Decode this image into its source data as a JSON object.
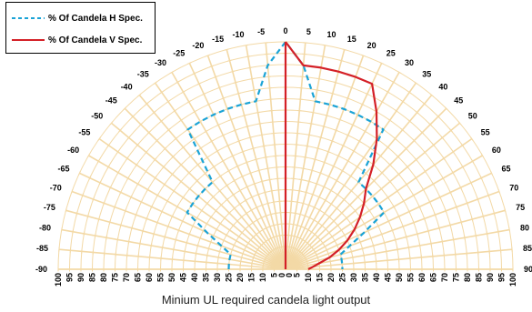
{
  "chart_data": {
    "type": "polar-semicircle",
    "angle_ticks": [
      -90,
      -85,
      -80,
      -75,
      -70,
      -65,
      -60,
      -55,
      -50,
      -45,
      -40,
      -35,
      -30,
      -25,
      -20,
      -15,
      -10,
      -5,
      0,
      5,
      10,
      15,
      20,
      25,
      30,
      35,
      40,
      45,
      50,
      55,
      60,
      65,
      70,
      75,
      80,
      85,
      90
    ],
    "radial_ticks": [
      0,
      5,
      10,
      15,
      20,
      25,
      30,
      35,
      40,
      45,
      50,
      55,
      60,
      65,
      70,
      75,
      80,
      85,
      90,
      95,
      100
    ],
    "xlabel": "Minium UL required candela light output",
    "series": [
      {
        "name": "% Of Candela H Spec.",
        "color": "#1aa3d6",
        "style": "dashed",
        "points": [
          {
            "angle": -90,
            "value": 25
          },
          {
            "angle": -85,
            "value": 25
          },
          {
            "angle": -80,
            "value": 25
          },
          {
            "angle": -75,
            "value": 25
          },
          {
            "angle": -70,
            "value": 30
          },
          {
            "angle": -65,
            "value": 38
          },
          {
            "angle": -60,
            "value": 50
          },
          {
            "angle": -55,
            "value": 50
          },
          {
            "angle": -50,
            "value": 50
          },
          {
            "angle": -45,
            "value": 50
          },
          {
            "angle": -40,
            "value": 50
          },
          {
            "angle": -35,
            "value": 75
          },
          {
            "angle": -30,
            "value": 75
          },
          {
            "angle": -25,
            "value": 75
          },
          {
            "angle": -20,
            "value": 75
          },
          {
            "angle": -15,
            "value": 75
          },
          {
            "angle": -10,
            "value": 75
          },
          {
            "angle": -5,
            "value": 90
          },
          {
            "angle": 0,
            "value": 100
          },
          {
            "angle": 5,
            "value": 90
          },
          {
            "angle": 10,
            "value": 75
          },
          {
            "angle": 15,
            "value": 75
          },
          {
            "angle": 20,
            "value": 75
          },
          {
            "angle": 25,
            "value": 75
          },
          {
            "angle": 30,
            "value": 75
          },
          {
            "angle": 35,
            "value": 75
          },
          {
            "angle": 40,
            "value": 50
          },
          {
            "angle": 45,
            "value": 50
          },
          {
            "angle": 50,
            "value": 50
          },
          {
            "angle": 55,
            "value": 50
          },
          {
            "angle": 60,
            "value": 50
          },
          {
            "angle": 65,
            "value": 38
          },
          {
            "angle": 70,
            "value": 30
          },
          {
            "angle": 75,
            "value": 25
          },
          {
            "angle": 80,
            "value": 25
          },
          {
            "angle": 85,
            "value": 25
          },
          {
            "angle": 90,
            "value": 25
          }
        ]
      },
      {
        "name": "% Of Candela V Spec.",
        "color": "#d42027",
        "style": "solid",
        "points": [
          {
            "angle": 0,
            "value": 100
          },
          {
            "angle": 5,
            "value": 90
          },
          {
            "angle": 10,
            "value": 90
          },
          {
            "angle": 15,
            "value": 90
          },
          {
            "angle": 20,
            "value": 90
          },
          {
            "angle": 25,
            "value": 90
          },
          {
            "angle": 30,
            "value": 80
          },
          {
            "angle": 35,
            "value": 70
          },
          {
            "angle": 40,
            "value": 60
          },
          {
            "angle": 45,
            "value": 50
          },
          {
            "angle": 50,
            "value": 45
          },
          {
            "angle": 55,
            "value": 40
          },
          {
            "angle": 60,
            "value": 35
          },
          {
            "angle": 65,
            "value": 30
          },
          {
            "angle": 70,
            "value": 25
          },
          {
            "angle": 75,
            "value": 20
          },
          {
            "angle": 80,
            "value": 15
          },
          {
            "angle": 85,
            "value": 12
          },
          {
            "angle": 90,
            "value": 10
          }
        ]
      }
    ]
  },
  "legend": {
    "h_label": "% Of Candela H Spec.",
    "v_label": "% Of Candela V Spec."
  }
}
